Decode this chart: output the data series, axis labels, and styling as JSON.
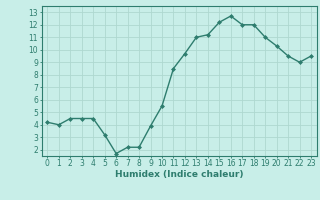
{
  "x": [
    0,
    1,
    2,
    3,
    4,
    5,
    6,
    7,
    8,
    9,
    10,
    11,
    12,
    13,
    14,
    15,
    16,
    17,
    18,
    19,
    20,
    21,
    22,
    23
  ],
  "y": [
    4.2,
    4.0,
    4.5,
    4.5,
    4.5,
    3.2,
    1.7,
    2.2,
    2.2,
    3.9,
    5.5,
    8.5,
    9.7,
    11.0,
    11.2,
    12.2,
    12.7,
    12.0,
    12.0,
    11.0,
    10.3,
    9.5,
    9.0,
    9.5
  ],
  "line_color": "#2e7d6e",
  "marker": "D",
  "marker_size": 2,
  "bg_color": "#c8eee8",
  "grid_color": "#aed8d0",
  "xlabel": "Humidex (Indice chaleur)",
  "xlim": [
    -0.5,
    23.5
  ],
  "ylim": [
    1.5,
    13.5
  ],
  "xticks": [
    0,
    1,
    2,
    3,
    4,
    5,
    6,
    7,
    8,
    9,
    10,
    11,
    12,
    13,
    14,
    15,
    16,
    17,
    18,
    19,
    20,
    21,
    22,
    23
  ],
  "yticks": [
    2,
    3,
    4,
    5,
    6,
    7,
    8,
    9,
    10,
    11,
    12,
    13
  ],
  "tick_color": "#2e7d6e",
  "label_color": "#2e7d6e",
  "spine_color": "#2e7d6e",
  "font_size_tick": 5.5,
  "font_size_label": 6.5
}
